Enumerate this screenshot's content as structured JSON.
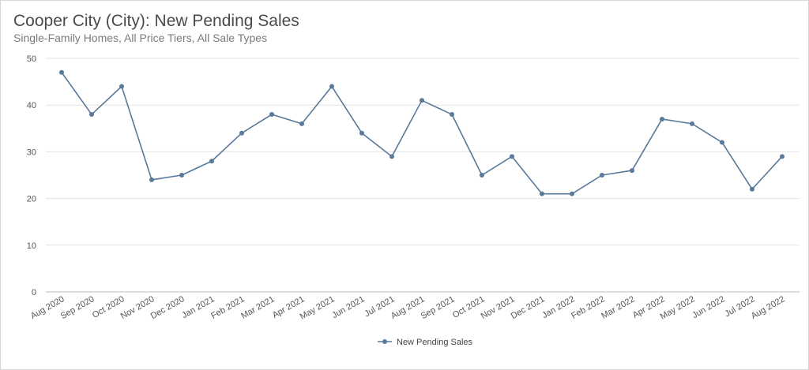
{
  "chart_data": {
    "type": "line",
    "title": "Cooper City (City): New Pending Sales",
    "subtitle": "Single-Family Homes, All Price Tiers, All Sale Types",
    "xlabel": "",
    "ylabel": "",
    "ylim": [
      0,
      50
    ],
    "yticks": [
      "0",
      "10",
      "20",
      "30",
      "40",
      "50"
    ],
    "grid": true,
    "legend_position": "bottom-center",
    "categories": [
      "Aug 2020",
      "Sep 2020",
      "Oct 2020",
      "Nov 2020",
      "Dec 2020",
      "Jan 2021",
      "Feb 2021",
      "Mar 2021",
      "Apr 2021",
      "May 2021",
      "Jun 2021",
      "Jul 2021",
      "Aug 2021",
      "Sep 2021",
      "Oct 2021",
      "Nov 2021",
      "Dec 2021",
      "Jan 2022",
      "Feb 2022",
      "Mar 2022",
      "Apr 2022",
      "May 2022",
      "Jun 2022",
      "Jul 2022",
      "Aug 2022"
    ],
    "series": [
      {
        "name": "New Pending Sales",
        "color": "#58799a",
        "values": [
          47,
          38,
          44,
          24,
          25,
          28,
          34,
          38,
          36,
          44,
          34,
          29,
          41,
          38,
          25,
          29,
          21,
          21,
          25,
          26,
          37,
          36,
          32,
          22,
          29
        ]
      }
    ]
  }
}
